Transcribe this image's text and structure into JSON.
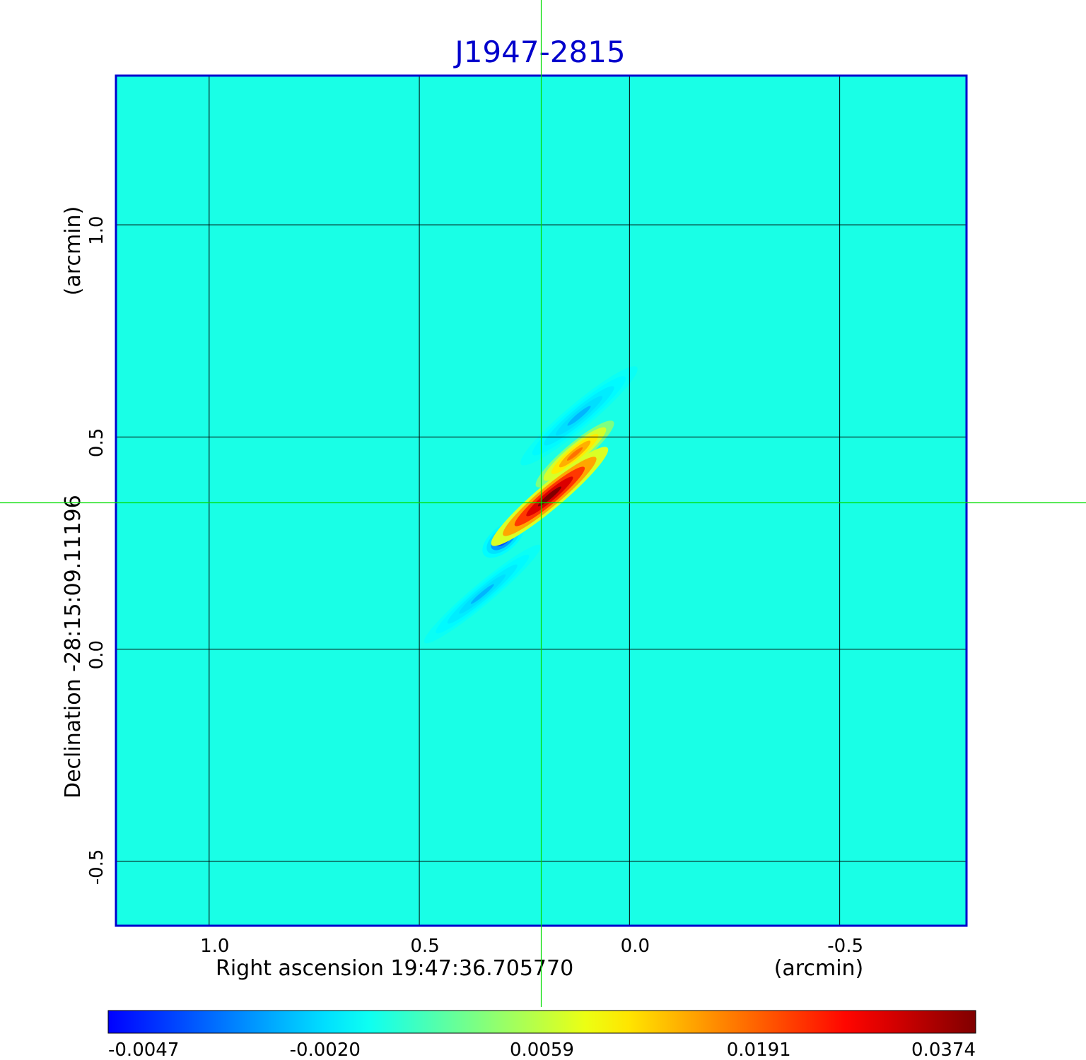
{
  "chart_data": {
    "type": "heatmap",
    "title": "J1947-2815",
    "xlabel": "Right ascension  19:47:36.705770",
    "xunit": "(arcmin)",
    "ylabel": "Declination  -28:15:09.11196",
    "yunit": "(arcmin)",
    "x_axis_reversed": true,
    "xlim": [
      1.22,
      -0.8
    ],
    "ylim": [
      -0.65,
      1.35
    ],
    "xticks": [
      1.0,
      0.5,
      0.0,
      -0.5
    ],
    "xtick_labels": [
      "1.0",
      "0.5",
      "0.0",
      "-0.5"
    ],
    "yticks": [
      1.0,
      0.5,
      0.0,
      -0.5
    ],
    "ytick_labels": [
      "1.0",
      "0.5",
      "0.0",
      "-0.5"
    ],
    "grid": true,
    "crosshair": {
      "x": 0.21,
      "y": 0.345,
      "color": "#00dd00"
    },
    "colorbar": {
      "colormap": "jet",
      "min": -0.0047,
      "max": 0.0374,
      "tick_values": [
        -0.0047,
        -0.002,
        0.0059,
        0.0191,
        0.0374
      ],
      "tick_labels": [
        "-0.0047",
        "-0.0020",
        "0.0059",
        "0.0191",
        "0.0374"
      ]
    },
    "background_level": 0.0,
    "features": [
      {
        "kind": "positive-peak",
        "x": 0.19,
        "y": 0.36,
        "value": 0.0374,
        "major_arcmin": 0.18,
        "minor_arcmin": 0.03,
        "pa_deg": 40
      },
      {
        "kind": "positive-wing",
        "x": 0.13,
        "y": 0.46,
        "value": 0.018,
        "major_arcmin": 0.12,
        "minor_arcmin": 0.025,
        "pa_deg": 40
      },
      {
        "kind": "negative-lobe",
        "x": 0.3,
        "y": 0.26,
        "value": -0.0047,
        "major_arcmin": 0.06,
        "minor_arcmin": 0.03,
        "pa_deg": 40
      },
      {
        "kind": "negative-stripe",
        "x": 0.35,
        "y": 0.13,
        "value": -0.0025,
        "major_arcmin": 0.18,
        "minor_arcmin": 0.025,
        "pa_deg": 40
      },
      {
        "kind": "negative-stripe",
        "x": 0.12,
        "y": 0.55,
        "value": -0.0025,
        "major_arcmin": 0.18,
        "minor_arcmin": 0.03,
        "pa_deg": 40
      }
    ],
    "colors": {
      "frame": "#0000cc",
      "title": "#0000cc",
      "grid": "#000000",
      "crosshair": "#00dd00"
    }
  }
}
